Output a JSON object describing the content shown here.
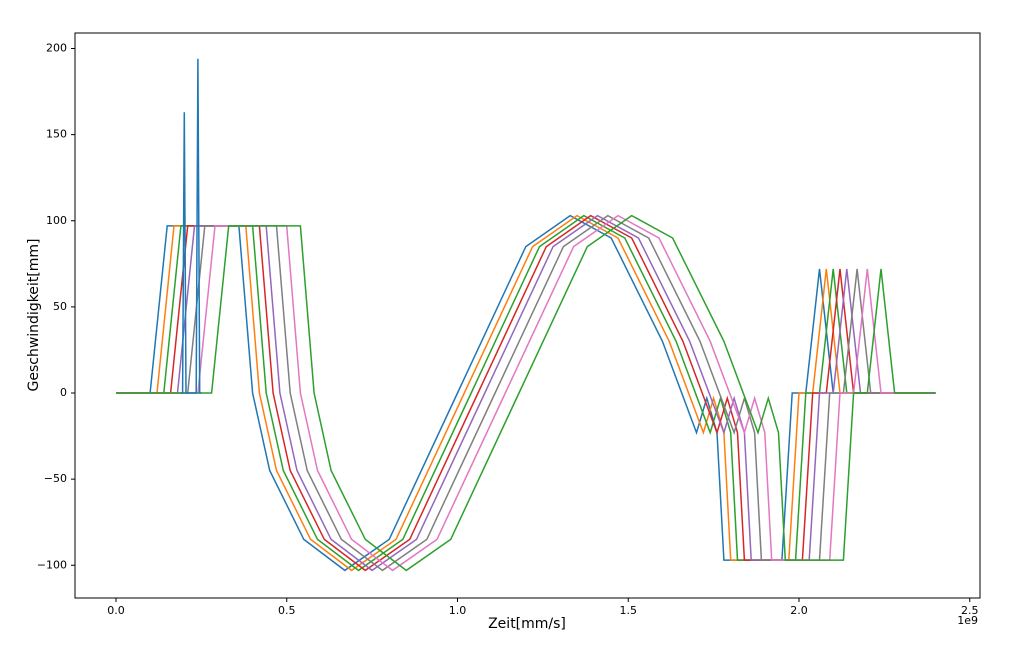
{
  "chart_data": {
    "type": "line",
    "xlabel": "Zeit[mm/s]",
    "ylabel": "Geschwindigkeit[mm]",
    "x_offset_label": "1e9",
    "xlim": [
      -0.12,
      2.53
    ],
    "ylim": [
      -119,
      209
    ],
    "xticks": [
      {
        "value": 0,
        "label": "0.0"
      },
      0.5,
      {
        "value": 1,
        "label": "1.0"
      },
      1.5,
      {
        "value": 2,
        "label": "2.0"
      },
      2.5
    ],
    "yticks": [
      {
        "value": -100,
        "label": "−100"
      },
      {
        "value": -50,
        "label": "−50"
      },
      0,
      50,
      100,
      150,
      200
    ],
    "series": [
      {
        "color": "#1f77b4",
        "x": [
          0,
          0.1,
          0.15,
          0.36,
          0.4,
          0.45,
          0.55,
          0.67,
          0.8,
          1.0,
          1.2,
          1.33,
          1.45,
          1.6,
          1.7,
          1.73,
          1.76,
          1.78,
          1.8,
          1.95,
          1.98,
          2.02,
          2.06,
          2.1,
          2.4
        ],
        "values": [
          0,
          0,
          97,
          97,
          0,
          -45,
          -85,
          -103,
          -85,
          0,
          85,
          103,
          90,
          30,
          -23,
          -3,
          -23,
          -97,
          -97,
          -97,
          0,
          0,
          72,
          0,
          0
        ]
      },
      {
        "color": "#ff7f0e",
        "x": [
          0,
          0.12,
          0.17,
          0.38,
          0.42,
          0.47,
          0.57,
          0.69,
          0.82,
          1.02,
          1.22,
          1.35,
          1.47,
          1.62,
          1.72,
          1.75,
          1.78,
          1.8,
          1.82,
          1.97,
          2.0,
          2.04,
          2.08,
          2.12,
          2.4
        ],
        "values": [
          0,
          0,
          97,
          97,
          0,
          -45,
          -85,
          -103,
          -85,
          0,
          85,
          103,
          90,
          30,
          -23,
          -3,
          -23,
          -97,
          -97,
          -97,
          0,
          0,
          72,
          0,
          0
        ]
      },
      {
        "color": "#2ca02c",
        "x": [
          0,
          0.14,
          0.19,
          0.4,
          0.44,
          0.49,
          0.59,
          0.71,
          0.84,
          1.04,
          1.24,
          1.37,
          1.49,
          1.64,
          1.74,
          1.77,
          1.8,
          1.82,
          1.84,
          1.99,
          2.02,
          2.06,
          2.1,
          2.14,
          2.4
        ],
        "values": [
          0,
          0,
          97,
          97,
          0,
          -45,
          -85,
          -103,
          -85,
          0,
          85,
          103,
          90,
          30,
          -23,
          -3,
          -23,
          -97,
          -97,
          -97,
          0,
          0,
          72,
          0,
          0
        ]
      },
      {
        "color": "#d62728",
        "x": [
          0,
          0.16,
          0.21,
          0.42,
          0.46,
          0.51,
          0.61,
          0.73,
          0.86,
          1.06,
          1.26,
          1.39,
          1.51,
          1.66,
          1.76,
          1.79,
          1.82,
          1.84,
          1.86,
          2.01,
          2.04,
          2.08,
          2.12,
          2.16,
          2.4
        ],
        "values": [
          0,
          0,
          97,
          97,
          0,
          -45,
          -85,
          -103,
          -85,
          0,
          85,
          103,
          90,
          30,
          -23,
          -3,
          -23,
          -97,
          -97,
          -97,
          0,
          0,
          72,
          0,
          0
        ]
      },
      {
        "color": "#9467bd",
        "x": [
          0,
          0.18,
          0.23,
          0.44,
          0.48,
          0.53,
          0.63,
          0.75,
          0.88,
          1.08,
          1.28,
          1.41,
          1.53,
          1.68,
          1.78,
          1.81,
          1.84,
          1.86,
          1.88,
          2.03,
          2.06,
          2.1,
          2.14,
          2.18,
          2.4
        ],
        "values": [
          0,
          0,
          97,
          97,
          0,
          -45,
          -85,
          -103,
          -85,
          0,
          85,
          103,
          90,
          30,
          -23,
          -3,
          -23,
          -97,
          -97,
          -97,
          0,
          0,
          72,
          0,
          0
        ]
      },
      {
        "color": "#7f7f7f",
        "x": [
          0,
          0.21,
          0.26,
          0.47,
          0.51,
          0.56,
          0.66,
          0.78,
          0.91,
          1.11,
          1.31,
          1.44,
          1.56,
          1.71,
          1.81,
          1.84,
          1.87,
          1.89,
          1.91,
          2.06,
          2.09,
          2.13,
          2.17,
          2.21,
          2.4
        ],
        "values": [
          0,
          0,
          97,
          97,
          0,
          -45,
          -85,
          -103,
          -85,
          0,
          85,
          103,
          90,
          30,
          -23,
          -3,
          -23,
          -97,
          -97,
          -97,
          0,
          0,
          72,
          0,
          0
        ]
      },
      {
        "color": "#e377c2",
        "x": [
          0,
          0.24,
          0.29,
          0.5,
          0.54,
          0.59,
          0.69,
          0.81,
          0.94,
          1.14,
          1.34,
          1.47,
          1.59,
          1.74,
          1.84,
          1.87,
          1.9,
          1.92,
          1.94,
          2.09,
          2.12,
          2.16,
          2.2,
          2.24,
          2.4
        ],
        "values": [
          0,
          0,
          97,
          97,
          0,
          -45,
          -85,
          -103,
          -85,
          0,
          85,
          103,
          90,
          30,
          -23,
          -3,
          -23,
          -97,
          -97,
          -97,
          0,
          0,
          72,
          0,
          0
        ]
      },
      {
        "color": "#2ca02c",
        "x": [
          0,
          0.28,
          0.33,
          0.54,
          0.58,
          0.63,
          0.73,
          0.85,
          0.98,
          1.18,
          1.38,
          1.51,
          1.63,
          1.78,
          1.88,
          1.91,
          1.94,
          1.96,
          1.98,
          2.13,
          2.16,
          2.2,
          2.24,
          2.28,
          2.4
        ],
        "values": [
          0,
          0,
          97,
          97,
          0,
          -45,
          -85,
          -103,
          -85,
          0,
          85,
          103,
          90,
          30,
          -23,
          -3,
          -23,
          -97,
          -97,
          -97,
          0,
          0,
          72,
          0,
          0
        ]
      },
      {
        "color": "#1f77b4",
        "x": [
          0.19,
          0.195,
          0.2,
          0.205,
          0.235,
          0.24,
          0.245,
          0.25
        ],
        "values": [
          0,
          0,
          163,
          0,
          0,
          194,
          0,
          0
        ]
      }
    ]
  }
}
